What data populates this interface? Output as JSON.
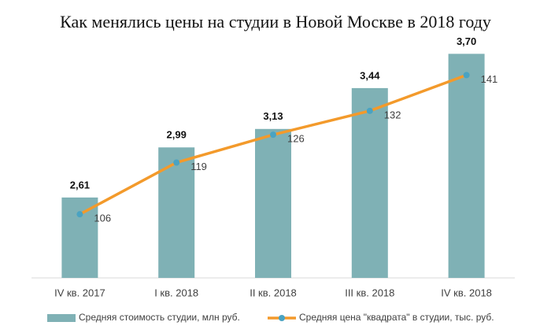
{
  "chart_data": {
    "type": "bar-line",
    "title": "Как менялись цены на студии в Новой Москве в 2018 году",
    "categories": [
      "IV кв. 2017",
      "I кв. 2018",
      "II кв. 2018",
      "III кв. 2018",
      "IV кв. 2018"
    ],
    "series": [
      {
        "name": "Средняя стоимость студии, млн руб.",
        "type": "bar",
        "color": "#7fb1b5",
        "values": [
          2.61,
          2.99,
          3.13,
          3.44,
          3.7
        ],
        "value_labels": [
          "2,61",
          "2,99",
          "3,13",
          "3,44",
          "3,70"
        ]
      },
      {
        "name": "Средняя цена \"квадрата\" в студии, тыс. руб.",
        "type": "line",
        "axis": "y2",
        "color": "#f39a2b",
        "marker_color": "#4aa3c2",
        "values": [
          106,
          119,
          126,
          132,
          141
        ]
      }
    ],
    "ylim": [
      2,
      3.75
    ],
    "y2lim": [
      90,
      148
    ],
    "legend": "bottom"
  }
}
